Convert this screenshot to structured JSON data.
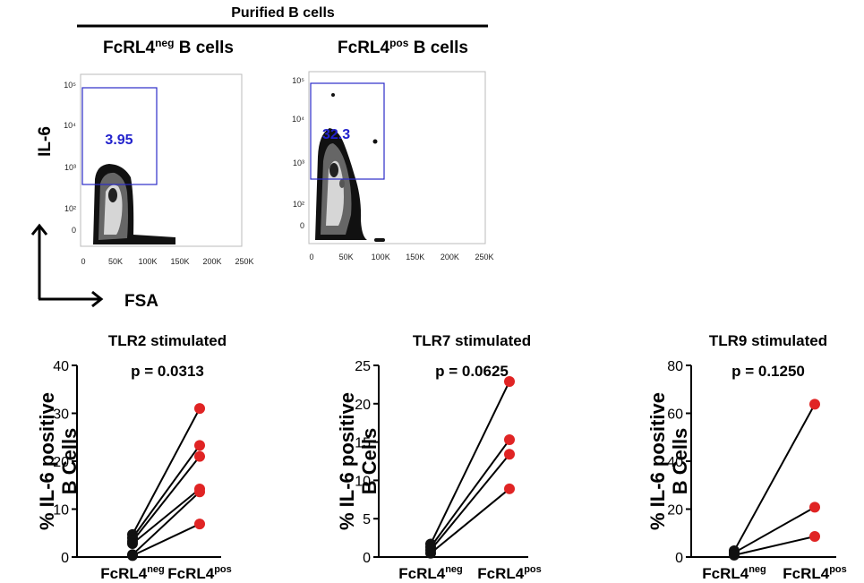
{
  "header": {
    "title": "Purified B cells"
  },
  "flow": {
    "y_label": "IL-6",
    "x_label": "FSA",
    "x_ticks": [
      "0",
      "50K",
      "100K",
      "150K",
      "200K",
      "250K"
    ],
    "y_ticks": [
      "10⁵",
      "10⁴",
      "10³",
      "10²",
      "0"
    ],
    "panels": [
      {
        "base": "FcRL4",
        "sup": "neg",
        "suffix": " B cells",
        "gate_value": "3.95"
      },
      {
        "base": "FcRL4",
        "sup": "pos",
        "suffix": " B cells",
        "gate_value": "32.3"
      }
    ]
  },
  "colors": {
    "gate": "#2b2bc8",
    "pos_point": "#e02424",
    "neg_point": "#111111"
  },
  "chart_data": [
    {
      "type": "scatter",
      "title": "TLR2 stimulated",
      "annotation": "p = 0.0313",
      "ylabel": "% IL-6 positive\nB Cells",
      "ylim": [
        0,
        40
      ],
      "yticks": [
        0,
        10,
        20,
        30,
        40
      ],
      "categories": [
        {
          "base": "FcRL4",
          "sup": "neg"
        },
        {
          "base": "FcRL4",
          "sup": "pos"
        }
      ],
      "pairs": [
        [
          4.7,
          31.0
        ],
        [
          4.0,
          23.3
        ],
        [
          3.3,
          21.0
        ],
        [
          2.8,
          14.2
        ],
        [
          0.5,
          13.6
        ],
        [
          0.3,
          6.9
        ]
      ]
    },
    {
      "type": "scatter",
      "title": "TLR7 stimulated",
      "annotation": "p = 0.0625",
      "ylabel": "% IL-6 positive\nB Cells",
      "ylim": [
        0,
        25
      ],
      "yticks": [
        0,
        5,
        10,
        15,
        20,
        25
      ],
      "categories": [
        {
          "base": "FcRL4",
          "sup": "neg"
        },
        {
          "base": "FcRL4",
          "sup": "pos"
        }
      ],
      "pairs": [
        [
          1.7,
          22.9
        ],
        [
          1.3,
          15.3
        ],
        [
          0.9,
          13.4
        ],
        [
          0.5,
          8.9
        ]
      ]
    },
    {
      "type": "scatter",
      "title": "TLR9 stimulated",
      "annotation": "p = 0.1250",
      "ylabel": "% IL-6 positive\nB Cells",
      "ylim": [
        0,
        80
      ],
      "yticks": [
        0,
        20,
        40,
        60,
        80
      ],
      "categories": [
        {
          "base": "FcRL4",
          "sup": "neg"
        },
        {
          "base": "FcRL4",
          "sup": "pos"
        }
      ],
      "pairs": [
        [
          2.6,
          63.8
        ],
        [
          1.8,
          20.8
        ],
        [
          0.8,
          8.6
        ]
      ]
    }
  ]
}
